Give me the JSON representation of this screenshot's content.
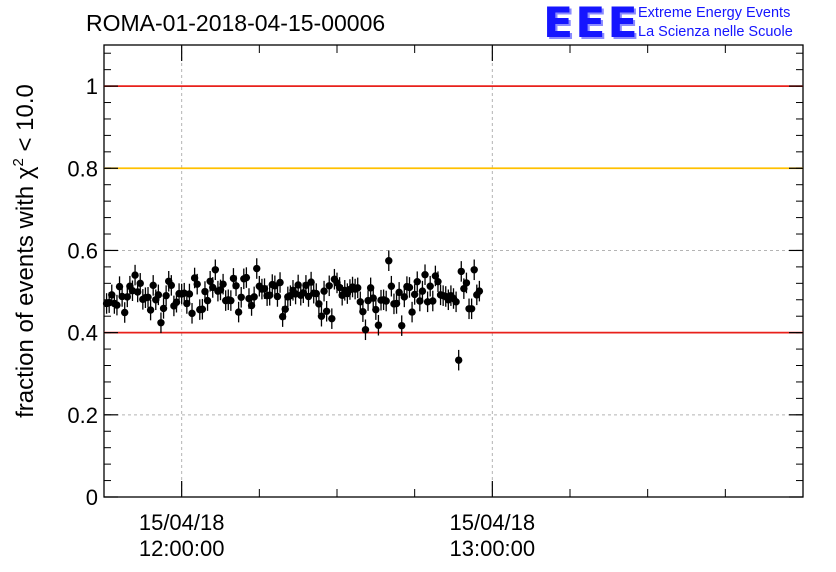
{
  "header": {
    "title": "ROMA-01-2018-04-15-00006",
    "logo_mark": "EEE",
    "logo_line1": "Extreme Energy Events",
    "logo_line2": "La Scienza nelle Scuole"
  },
  "chart_data": {
    "type": "scatter",
    "title": "ROMA-01-2018-04-15-00006",
    "ylabel_main": "fraction of events with ",
    "ylabel_symbol": "χ",
    "ylabel_superscript": "2",
    "ylabel_tail": " < 10.0",
    "ylim": [
      0,
      1.1
    ],
    "xlim": [
      "11:45:00",
      "14:00:00"
    ],
    "grid": true,
    "error_bars": true,
    "y_ticks": [
      {
        "value": 0,
        "label": "0"
      },
      {
        "value": 0.2,
        "label": "0.2"
      },
      {
        "value": 0.4,
        "label": "0.4"
      },
      {
        "value": 0.6,
        "label": "0.6"
      },
      {
        "value": 0.8,
        "label": "0.8"
      },
      {
        "value": 1,
        "label": "1"
      }
    ],
    "x_ticks": [
      {
        "time": "12:00:00",
        "date": "15/04/18",
        "label": "12:00:00"
      },
      {
        "time": "13:00:00",
        "date": "15/04/18",
        "label": "13:00:00"
      }
    ],
    "x_minor_times": [
      "11:45:00",
      "12:15:00",
      "12:30:00",
      "12:45:00",
      "13:15:00",
      "13:30:00",
      "13:45:00"
    ],
    "reference_lines": [
      {
        "y": 1.0,
        "color": "#e8201b"
      },
      {
        "y": 0.8,
        "color": "#ffc000"
      },
      {
        "y": 0.4,
        "color": "#e8201b"
      }
    ],
    "series": [
      {
        "start_time": "11:45:30",
        "step_seconds": 30,
        "error": 0.025,
        "values": [
          0.471,
          0.473,
          0.492,
          0.471,
          0.467,
          0.512,
          0.488,
          0.449,
          0.487,
          0.513,
          0.502,
          0.54,
          0.499,
          0.52,
          0.481,
          0.485,
          0.486,
          0.455,
          0.515,
          0.48,
          0.492,
          0.424,
          0.459,
          0.49,
          0.525,
          0.515,
          0.465,
          0.474,
          0.495,
          0.494,
          0.496,
          0.471,
          0.494,
          0.447,
          0.533,
          0.518,
          0.456,
          0.457,
          0.5,
          0.478,
          0.525,
          0.51,
          0.553,
          0.501,
          0.504,
          0.518,
          0.478,
          0.48,
          0.478,
          0.532,
          0.514,
          0.45,
          0.486,
          0.531,
          0.534,
          0.483,
          0.466,
          0.487,
          0.556,
          0.513,
          0.506,
          0.507,
          0.49,
          0.491,
          0.517,
          0.514,
          0.488,
          0.522,
          0.439,
          0.457,
          0.487,
          0.49,
          0.503,
          0.494,
          0.516,
          0.491,
          0.497,
          0.515,
          0.488,
          0.523,
          0.496,
          0.495,
          0.47,
          0.44,
          0.501,
          0.452,
          0.514,
          0.434,
          0.53,
          0.521,
          0.51,
          0.491,
          0.503,
          0.495,
          0.505,
          0.511,
          0.506,
          0.509,
          0.475,
          0.451,
          0.407,
          0.478,
          0.509,
          0.484,
          0.456,
          0.418,
          0.479,
          0.48,
          0.477,
          0.575,
          0.513,
          0.47,
          0.471,
          0.498,
          0.417,
          0.487,
          0.512,
          0.51,
          0.45,
          0.493,
          0.524,
          0.477,
          0.501,
          0.541,
          0.475,
          0.513,
          0.477,
          0.538,
          0.524,
          0.492,
          0.49,
          0.488,
          0.48,
          0.49,
          0.483,
          0.475,
          0.333,
          0.549,
          0.507,
          0.521,
          0.458,
          0.458,
          0.553,
          0.492,
          0.501
        ]
      }
    ]
  }
}
